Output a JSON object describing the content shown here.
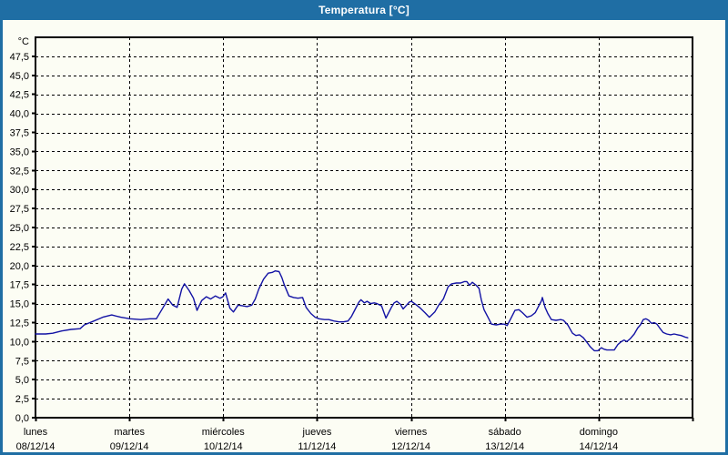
{
  "window": {
    "title": "Temperatura [°C]",
    "theme": {
      "titlebar_color": "#1f6ea4",
      "border_color": "#1f6ea4",
      "title_text_color": "#ffffff",
      "background_color": "#fcfdf4",
      "grid_color": "#000000",
      "line_color": "#1212a4"
    }
  },
  "chart_data": {
    "type": "line",
    "title": "Temperatura [°C]",
    "ylabel": "°C",
    "ylim": [
      0,
      50
    ],
    "y_tick_step": 2.5,
    "grid": "dashed",
    "legend": "none",
    "y_tick_labels": [
      "0,0",
      "2,5",
      "5,0",
      "7,5",
      "10,0",
      "12,5",
      "15,0",
      "17,5",
      "20,0",
      "22,5",
      "25,0",
      "27,5",
      "30,0",
      "32,5",
      "35,0",
      "37,5",
      "40,0",
      "42,5",
      "45,0",
      "47,5"
    ],
    "x_days": [
      {
        "weekday": "lunes",
        "date": "08/12/14"
      },
      {
        "weekday": "martes",
        "date": "09/12/14"
      },
      {
        "weekday": "miércoles",
        "date": "10/12/14"
      },
      {
        "weekday": "jueves",
        "date": "11/12/14"
      },
      {
        "weekday": "viernes",
        "date": "12/12/14"
      },
      {
        "weekday": "sábado",
        "date": "13/12/14"
      },
      {
        "weekday": "domingo",
        "date": "14/12/14"
      }
    ],
    "x_range_hours": [
      0,
      168
    ],
    "series": [
      {
        "name": "Temperatura",
        "points_hours_temp": [
          [
            0,
            11.0
          ],
          [
            2.6,
            11.0
          ],
          [
            4.4,
            11.1
          ],
          [
            6.7,
            11.4
          ],
          [
            9.1,
            11.6
          ],
          [
            11.4,
            11.7
          ],
          [
            12.5,
            12.2
          ],
          [
            14.9,
            12.7
          ],
          [
            17.2,
            13.2
          ],
          [
            19.5,
            13.5
          ],
          [
            21.8,
            13.2
          ],
          [
            24.2,
            13.0
          ],
          [
            26.9,
            12.9
          ],
          [
            29.3,
            13.0
          ],
          [
            30.9,
            13.0
          ],
          [
            32.3,
            14.2
          ],
          [
            33.9,
            15.6
          ],
          [
            35.1,
            14.8
          ],
          [
            36.2,
            14.5
          ],
          [
            37.4,
            16.9
          ],
          [
            38.1,
            17.6
          ],
          [
            39.3,
            16.7
          ],
          [
            40.4,
            15.7
          ],
          [
            41.3,
            14.1
          ],
          [
            42.5,
            15.4
          ],
          [
            43.7,
            15.9
          ],
          [
            44.8,
            15.6
          ],
          [
            46.0,
            16.0
          ],
          [
            47.2,
            15.7
          ],
          [
            47.9,
            15.9
          ],
          [
            48.6,
            16.4
          ],
          [
            49.7,
            14.4
          ],
          [
            50.6,
            13.9
          ],
          [
            51.8,
            14.8
          ],
          [
            53.0,
            14.7
          ],
          [
            54.1,
            14.6
          ],
          [
            55.3,
            14.8
          ],
          [
            56.2,
            15.6
          ],
          [
            57.1,
            16.9
          ],
          [
            58.3,
            18.2
          ],
          [
            59.5,
            19.0
          ],
          [
            60.6,
            19.1
          ],
          [
            61.3,
            19.3
          ],
          [
            62.3,
            19.2
          ],
          [
            63.0,
            18.4
          ],
          [
            63.6,
            17.5
          ],
          [
            64.8,
            16.0
          ],
          [
            66.0,
            15.8
          ],
          [
            67.1,
            15.7
          ],
          [
            68.3,
            15.8
          ],
          [
            69.2,
            14.5
          ],
          [
            70.4,
            13.7
          ],
          [
            71.5,
            13.2
          ],
          [
            72.5,
            13.0
          ],
          [
            73.9,
            12.9
          ],
          [
            75.0,
            12.9
          ],
          [
            76.4,
            12.7
          ],
          [
            77.6,
            12.6
          ],
          [
            78.7,
            12.6
          ],
          [
            79.9,
            12.7
          ],
          [
            80.8,
            13.3
          ],
          [
            81.8,
            14.3
          ],
          [
            82.7,
            15.2
          ],
          [
            83.2,
            15.5
          ],
          [
            84.1,
            15.1
          ],
          [
            84.8,
            15.3
          ],
          [
            85.7,
            15.0
          ],
          [
            86.6,
            15.1
          ],
          [
            87.3,
            15.0
          ],
          [
            88.5,
            14.7
          ],
          [
            89.6,
            13.1
          ],
          [
            91.0,
            14.5
          ],
          [
            91.7,
            15.1
          ],
          [
            92.4,
            15.3
          ],
          [
            93.3,
            14.9
          ],
          [
            94.0,
            14.3
          ],
          [
            94.9,
            14.8
          ],
          [
            95.6,
            15.2
          ],
          [
            96.1,
            15.3
          ],
          [
            97.2,
            14.9
          ],
          [
            98.4,
            14.4
          ],
          [
            99.6,
            13.8
          ],
          [
            100.7,
            13.2
          ],
          [
            102.1,
            13.9
          ],
          [
            103.1,
            14.8
          ],
          [
            104.3,
            15.6
          ],
          [
            105.5,
            17.2
          ],
          [
            106.4,
            17.6
          ],
          [
            107.6,
            17.7
          ],
          [
            108.7,
            17.7
          ],
          [
            109.7,
            17.9
          ],
          [
            110.3,
            17.9
          ],
          [
            111.0,
            17.4
          ],
          [
            111.7,
            17.8
          ],
          [
            112.7,
            17.4
          ],
          [
            113.4,
            17.0
          ],
          [
            114.0,
            15.5
          ],
          [
            114.7,
            14.2
          ],
          [
            115.7,
            13.2
          ],
          [
            116.6,
            12.3
          ],
          [
            117.8,
            12.2
          ],
          [
            118.9,
            12.3
          ],
          [
            119.9,
            12.3
          ],
          [
            120.6,
            12.1
          ],
          [
            121.5,
            13.0
          ],
          [
            122.6,
            14.1
          ],
          [
            123.6,
            14.2
          ],
          [
            124.5,
            13.8
          ],
          [
            125.7,
            13.2
          ],
          [
            126.8,
            13.4
          ],
          [
            127.8,
            13.8
          ],
          [
            128.4,
            14.4
          ],
          [
            129.4,
            15.4
          ],
          [
            129.6,
            15.8
          ],
          [
            130.3,
            14.5
          ],
          [
            131.0,
            13.7
          ],
          [
            131.9,
            12.9
          ],
          [
            133.1,
            12.8
          ],
          [
            134.3,
            12.9
          ],
          [
            135.0,
            12.8
          ],
          [
            136.1,
            12.2
          ],
          [
            137.3,
            11.1
          ],
          [
            138.2,
            10.8
          ],
          [
            139.1,
            10.9
          ],
          [
            140.1,
            10.5
          ],
          [
            141.0,
            9.9
          ],
          [
            141.9,
            9.3
          ],
          [
            142.9,
            8.8
          ],
          [
            143.8,
            8.8
          ],
          [
            144.7,
            9.2
          ],
          [
            145.4,
            9.0
          ],
          [
            146.1,
            8.9
          ],
          [
            147.0,
            8.9
          ],
          [
            148.0,
            8.9
          ],
          [
            148.9,
            9.6
          ],
          [
            149.8,
            10.0
          ],
          [
            150.5,
            10.2
          ],
          [
            151.2,
            10.0
          ],
          [
            152.1,
            10.4
          ],
          [
            153.1,
            11.0
          ],
          [
            154.0,
            11.8
          ],
          [
            154.7,
            12.2
          ],
          [
            155.4,
            12.9
          ],
          [
            156.1,
            13.0
          ],
          [
            156.8,
            12.8
          ],
          [
            157.5,
            12.4
          ],
          [
            158.2,
            12.5
          ],
          [
            158.9,
            12.3
          ],
          [
            159.6,
            11.8
          ],
          [
            160.5,
            11.2
          ],
          [
            161.4,
            11.0
          ],
          [
            162.4,
            10.9
          ],
          [
            163.3,
            11.0
          ],
          [
            164.2,
            10.9
          ],
          [
            165.1,
            10.8
          ],
          [
            166.1,
            10.6
          ],
          [
            166.8,
            10.5
          ]
        ]
      }
    ]
  }
}
